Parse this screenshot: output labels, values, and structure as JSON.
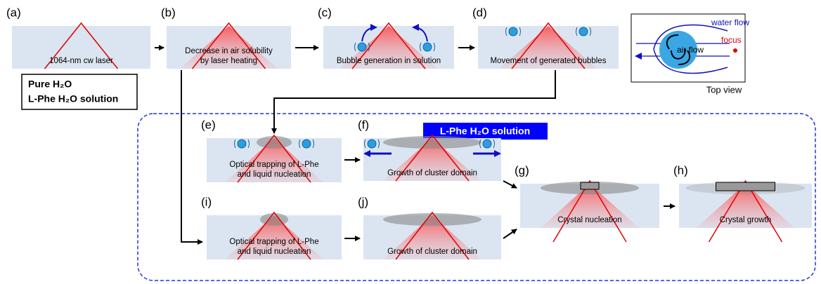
{
  "panels": [
    {
      "label": "(a)",
      "caption": [
        "1064-nm cw laser"
      ]
    },
    {
      "label": "(b)",
      "caption": [
        "Decrease in air solubility",
        "by laser heating"
      ]
    },
    {
      "label": "(c)",
      "caption": [
        "Bubble generation in solution"
      ]
    },
    {
      "label": "(d)",
      "caption": [
        "Movement of generated bubbles"
      ]
    },
    {
      "label": "(e)",
      "caption": [
        "Optical trapping of L-Phe",
        "and liquid nucleation"
      ]
    },
    {
      "label": "(f)",
      "caption": [
        "Growth of cluster domain"
      ]
    },
    {
      "label": "(g)",
      "caption": [
        "Crystal nucleation"
      ]
    },
    {
      "label": "(h)",
      "caption": [
        "Crystal growth"
      ]
    },
    {
      "label": "(i)",
      "caption": [
        "Optical trapping of L-Phe",
        "and liquid nucleation"
      ]
    },
    {
      "label": "(j)",
      "caption": [
        "Growth of cluster domain"
      ]
    }
  ],
  "sample_box": [
    "Pure H₂O",
    "L-Phe H₂O solution"
  ],
  "banner": "L-Phe H₂O solution",
  "inset": {
    "water_flow": "water flow",
    "focus": "focus",
    "air_flow": "air flow",
    "caption": "Top view"
  }
}
